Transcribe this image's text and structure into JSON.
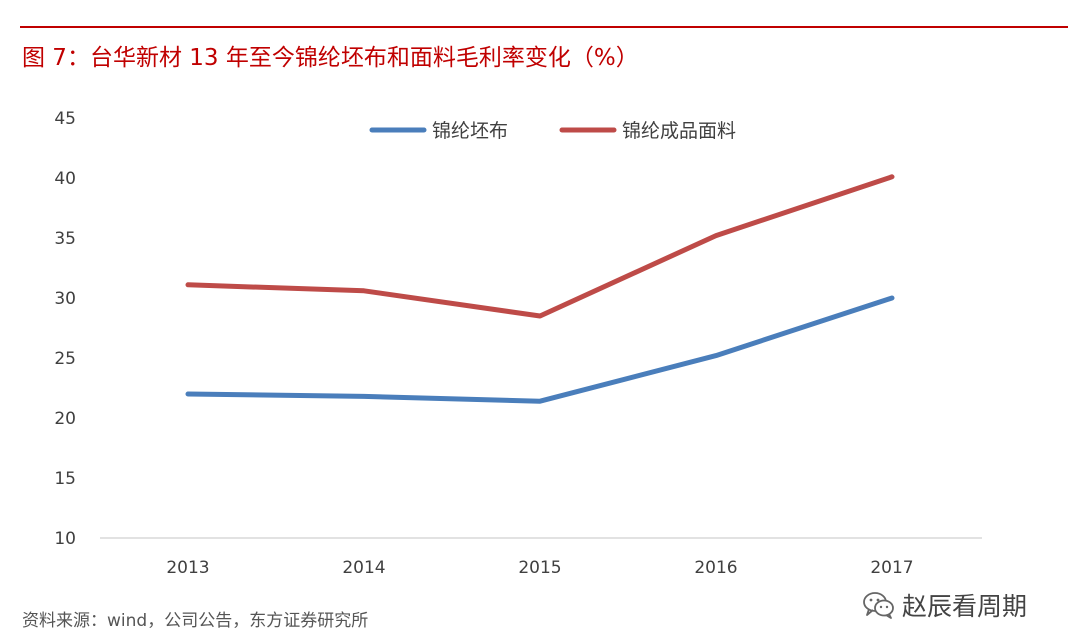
{
  "figure": {
    "title": "图 7：台华新材 13 年至今锦纶坯布和面料毛利率变化（%）",
    "source": "资料来源：wind，公司公告，东方证券研究所",
    "watermark": "赵辰看周期",
    "watermark_icon": "wechat-icon"
  },
  "chart_data": {
    "type": "line",
    "title": "图 7：台华新材 13 年至今锦纶坯布和面料毛利率变化（%）",
    "x": [
      "2013",
      "2014",
      "2015",
      "2016",
      "2017"
    ],
    "ylim": [
      10,
      45
    ],
    "yticks": [
      10,
      15,
      20,
      25,
      30,
      35,
      40,
      45
    ],
    "grid": false,
    "legend_position": "top-center",
    "series": [
      {
        "name": "锦纶坯布",
        "color": "#4a7ebb",
        "values": [
          22.0,
          21.8,
          21.4,
          25.2,
          30.0
        ]
      },
      {
        "name": "锦纶成品面料",
        "color": "#be4b48",
        "values": [
          31.1,
          30.6,
          28.5,
          35.2,
          40.1
        ]
      }
    ]
  }
}
